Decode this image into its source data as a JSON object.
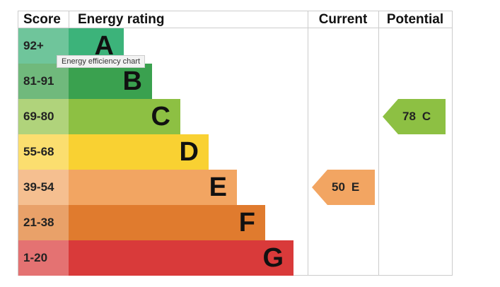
{
  "header": {
    "score": "Score",
    "rating": "Energy rating",
    "current": "Current",
    "potential": "Potential"
  },
  "tooltip": "Energy efficiency chart",
  "bands": [
    {
      "range": "92+",
      "letter": "A",
      "color": "#3cb37a",
      "tint": "#6fc59b"
    },
    {
      "range": "81-91",
      "letter": "B",
      "color": "#3aa14f",
      "tint": "#70b97c"
    },
    {
      "range": "69-80",
      "letter": "C",
      "color": "#8dc043",
      "tint": "#b0d37b"
    },
    {
      "range": "55-68",
      "letter": "D",
      "color": "#f9d132",
      "tint": "#fbde6f"
    },
    {
      "range": "39-54",
      "letter": "E",
      "color": "#f2a562",
      "tint": "#f5bf90"
    },
    {
      "range": "21-38",
      "letter": "F",
      "color": "#e07b2e",
      "tint": "#e9a169"
    },
    {
      "range": "1-20",
      "letter": "G",
      "color": "#d93a3a",
      "tint": "#e47272"
    }
  ],
  "current": {
    "value": 50,
    "rating": "E"
  },
  "potential": {
    "value": 78,
    "rating": "C"
  }
}
